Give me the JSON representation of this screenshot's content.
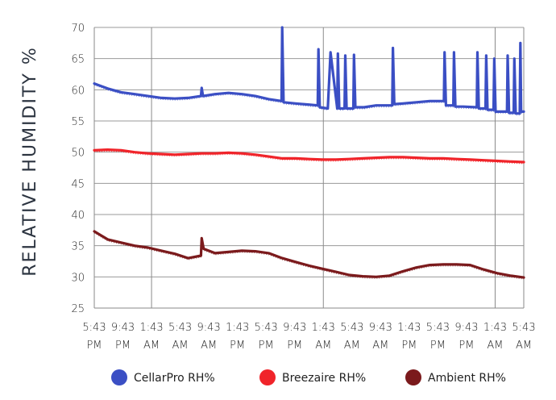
{
  "chart_data": {
    "type": "line",
    "title": "",
    "ylabel": "RELATIVE HUMIDITY %",
    "xlabel": "",
    "ylim": [
      25,
      70
    ],
    "yticks": [
      25,
      30,
      35,
      40,
      45,
      50,
      55,
      60,
      65,
      70
    ],
    "x_tick_labels": [
      [
        "5:43",
        "PM"
      ],
      [
        "9:43",
        "PM"
      ],
      [
        "1:43",
        "AM"
      ],
      [
        "5:43",
        "AM"
      ],
      [
        "9:43",
        "AM"
      ],
      [
        "1:43",
        "PM"
      ],
      [
        "5:43",
        "PM"
      ],
      [
        "9:43",
        "PM"
      ],
      [
        "1:43",
        "AM"
      ],
      [
        "5:43",
        "AM"
      ],
      [
        "9:43",
        "AM"
      ],
      [
        "1:43",
        "PM"
      ],
      [
        "5:43",
        "PM"
      ],
      [
        "9:43",
        "PM"
      ],
      [
        "1:43",
        "AM"
      ],
      [
        "5:43",
        "AM"
      ]
    ],
    "x_unit": "hours since first tick (ticks every 4 hours)",
    "xlim": [
      0,
      64
    ],
    "grid": "vertical lines every 24 hours (1:43 AM, 1:43 AM, 1:43 AM) and horizontal at each y tick",
    "legend_position": "bottom",
    "series": [
      {
        "name": "CellarPro RH%",
        "color": "#3b4fc4",
        "x": [
          0,
          2,
          4,
          6,
          8,
          10,
          12,
          14,
          15.9,
          16,
          16.2,
          18,
          20,
          22,
          24,
          26,
          27.9,
          28,
          28.2,
          30,
          33.3,
          33.4,
          33.6,
          34.8,
          35.2,
          36.2,
          36.3,
          36.5,
          37.3,
          37.4,
          37.6,
          38.6,
          38.7,
          38.9,
          40,
          40.2,
          42,
          44.4,
          44.5,
          44.7,
          46,
          48,
          50,
          52.1,
          52.2,
          52.4,
          53.5,
          53.6,
          53.8,
          55,
          57,
          57.1,
          57.3,
          58.3,
          58.4,
          58.6,
          59.5,
          59.6,
          59.8,
          61.5,
          61.6,
          61.8,
          62.5,
          62.6,
          62.8,
          63.4,
          63.5,
          63.6,
          64
        ],
        "values": [
          61.0,
          60.2,
          59.6,
          59.3,
          59.0,
          58.7,
          58.6,
          58.7,
          59.0,
          60.3,
          59.0,
          59.3,
          59.5,
          59.3,
          59.0,
          58.5,
          58.2,
          70.0,
          58.0,
          57.8,
          57.5,
          66.5,
          57.2,
          57.0,
          66.0,
          57.0,
          65.8,
          57.0,
          57.0,
          65.5,
          57.0,
          57.0,
          65.6,
          57.2,
          57.2,
          57.2,
          57.5,
          57.5,
          66.7,
          57.7,
          57.8,
          58.0,
          58.2,
          58.2,
          66.0,
          57.5,
          57.5,
          66.0,
          57.3,
          57.3,
          57.2,
          66.0,
          57.0,
          57.0,
          65.5,
          56.8,
          56.8,
          65.0,
          56.5,
          56.5,
          65.5,
          56.3,
          56.3,
          65.0,
          56.2,
          56.2,
          67.5,
          56.5,
          56.5
        ]
      },
      {
        "name": "Breezaire RH%",
        "color": "#f0242a",
        "x": [
          0,
          2,
          4,
          6,
          8,
          10,
          12,
          14,
          16,
          18,
          20,
          22,
          24,
          26,
          28,
          30,
          32,
          34,
          36,
          38,
          40,
          42,
          44,
          46,
          48,
          50,
          52,
          54,
          56,
          58,
          60,
          62,
          64
        ],
        "values": [
          50.3,
          50.4,
          50.3,
          50.0,
          49.8,
          49.7,
          49.6,
          49.7,
          49.8,
          49.8,
          49.9,
          49.8,
          49.6,
          49.3,
          49.0,
          49.0,
          48.9,
          48.8,
          48.8,
          48.9,
          49.0,
          49.1,
          49.2,
          49.2,
          49.1,
          49.0,
          49.0,
          48.9,
          48.8,
          48.7,
          48.6,
          48.5,
          48.4
        ]
      },
      {
        "name": "Ambient RH%",
        "color": "#7b1a1c",
        "x": [
          0,
          2,
          4,
          6,
          8,
          10,
          12,
          14,
          15.9,
          16,
          16.3,
          18,
          20,
          22,
          24,
          26,
          28,
          30,
          32,
          34,
          36,
          38,
          40,
          42,
          44,
          46,
          48,
          50,
          52,
          54,
          56,
          58,
          60,
          62,
          64
        ],
        "values": [
          37.3,
          36.0,
          35.5,
          35.0,
          34.7,
          34.2,
          33.7,
          33.0,
          33.4,
          36.2,
          34.5,
          33.8,
          34.0,
          34.2,
          34.1,
          33.8,
          33.0,
          32.4,
          31.8,
          31.3,
          30.8,
          30.3,
          30.1,
          30.0,
          30.2,
          30.9,
          31.5,
          31.9,
          32.0,
          32.0,
          31.9,
          31.2,
          30.6,
          30.2,
          29.9
        ]
      }
    ]
  }
}
